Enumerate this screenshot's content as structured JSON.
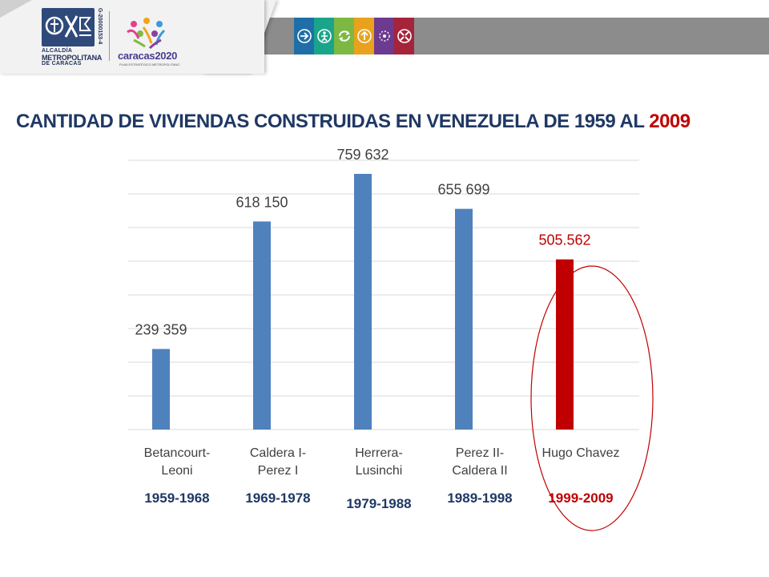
{
  "header": {
    "logo_alcaldia": {
      "line1": "ALCALDÍA",
      "line2": "METROPOLITANA",
      "line3": "DE CARACAS",
      "rif": "G-20000153-4"
    },
    "logo_caracas2020": {
      "name": "caracas2020",
      "tagline": "PLAN ESTRATÉGICO METROPOLITANO"
    },
    "icons": [
      {
        "name": "arrow-right-icon",
        "color": "#1e6fa8"
      },
      {
        "name": "person-icon",
        "color": "#1aa58a"
      },
      {
        "name": "recycle-icon",
        "color": "#7db843"
      },
      {
        "name": "arrow-up-icon",
        "color": "#e8a21d"
      },
      {
        "name": "circle-dots-icon",
        "color": "#6c3a8e"
      },
      {
        "name": "arrows-inward-icon",
        "color": "#a5243a"
      }
    ]
  },
  "title": {
    "main": "CANTIDAD DE VIVIENDAS CONSTRUIDAS EN VENEZUELA DE 1959 AL ",
    "highlight": "2009"
  },
  "chart_data": {
    "type": "bar",
    "categories": [
      "Betancourt-\nLeoni",
      "Caldera I-\nPerez I",
      "Herrera-\nLusinchi",
      "Perez II-\nCaldera II",
      "Hugo Chavez"
    ],
    "periods": [
      "1959-1968",
      "1969-1978",
      "1979-1988",
      "1989-1998",
      "1999-2009"
    ],
    "values": [
      239359,
      618150,
      759632,
      655699,
      505562
    ],
    "data_labels": [
      "239 359",
      "618 150",
      "759 632",
      "655 699",
      "505.562"
    ],
    "bar_colors": [
      "#4f81bd",
      "#4f81bd",
      "#4f81bd",
      "#4f81bd",
      "#c00000"
    ],
    "label_colors": [
      "#404040",
      "#404040",
      "#404040",
      "#404040",
      "#c00000"
    ],
    "period_colors": [
      "#1f3864",
      "#1f3864",
      "#1f3864",
      "#1f3864",
      "#c00000"
    ],
    "ylim": [
      0,
      800000
    ],
    "gridlines": 8,
    "highlight_index": 4,
    "highlight_color": "#c00000"
  }
}
